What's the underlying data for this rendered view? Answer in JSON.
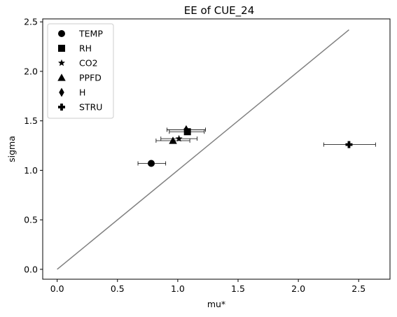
{
  "chart_data": {
    "type": "scatter",
    "title": "EE of CUE_24",
    "xlabel": "mu*",
    "ylabel": "sigma",
    "xlim": [
      -0.12,
      2.76
    ],
    "ylim": [
      -0.1,
      2.53
    ],
    "xticks": [
      0.0,
      0.5,
      1.0,
      1.5,
      2.0,
      2.5
    ],
    "xtick_labels": [
      "0.0",
      "0.5",
      "1.0",
      "1.5",
      "2.0",
      "2.5"
    ],
    "yticks": [
      0.0,
      0.5,
      1.0,
      1.5,
      2.0,
      2.5
    ],
    "ytick_labels": [
      "0.0",
      "0.5",
      "1.0",
      "1.5",
      "2.0",
      "2.5"
    ],
    "grid": false,
    "legend_position": "upper-left",
    "reference_line": {
      "x": [
        0.0,
        2.42
      ],
      "y": [
        0.0,
        2.42
      ],
      "color": "#808080"
    },
    "series": [
      {
        "name": "TEMP",
        "marker": "circle",
        "x": 0.78,
        "y": 1.07,
        "xerr": [
          0.67,
          0.9
        ]
      },
      {
        "name": "RH",
        "marker": "square",
        "x": 1.08,
        "y": 1.39,
        "xerr": [
          0.93,
          1.22
        ]
      },
      {
        "name": "CO2",
        "marker": "star",
        "x": 1.01,
        "y": 1.32,
        "xerr": [
          0.86,
          1.16
        ]
      },
      {
        "name": "PPFD",
        "marker": "triangle",
        "x": 0.96,
        "y": 1.3,
        "xerr": [
          0.82,
          1.1
        ]
      },
      {
        "name": "H",
        "marker": "diamond",
        "x": 1.07,
        "y": 1.41,
        "xerr": [
          0.91,
          1.23
        ]
      },
      {
        "name": "STRU",
        "marker": "plus",
        "x": 2.42,
        "y": 1.26,
        "xerr": [
          2.21,
          2.64
        ]
      }
    ]
  }
}
